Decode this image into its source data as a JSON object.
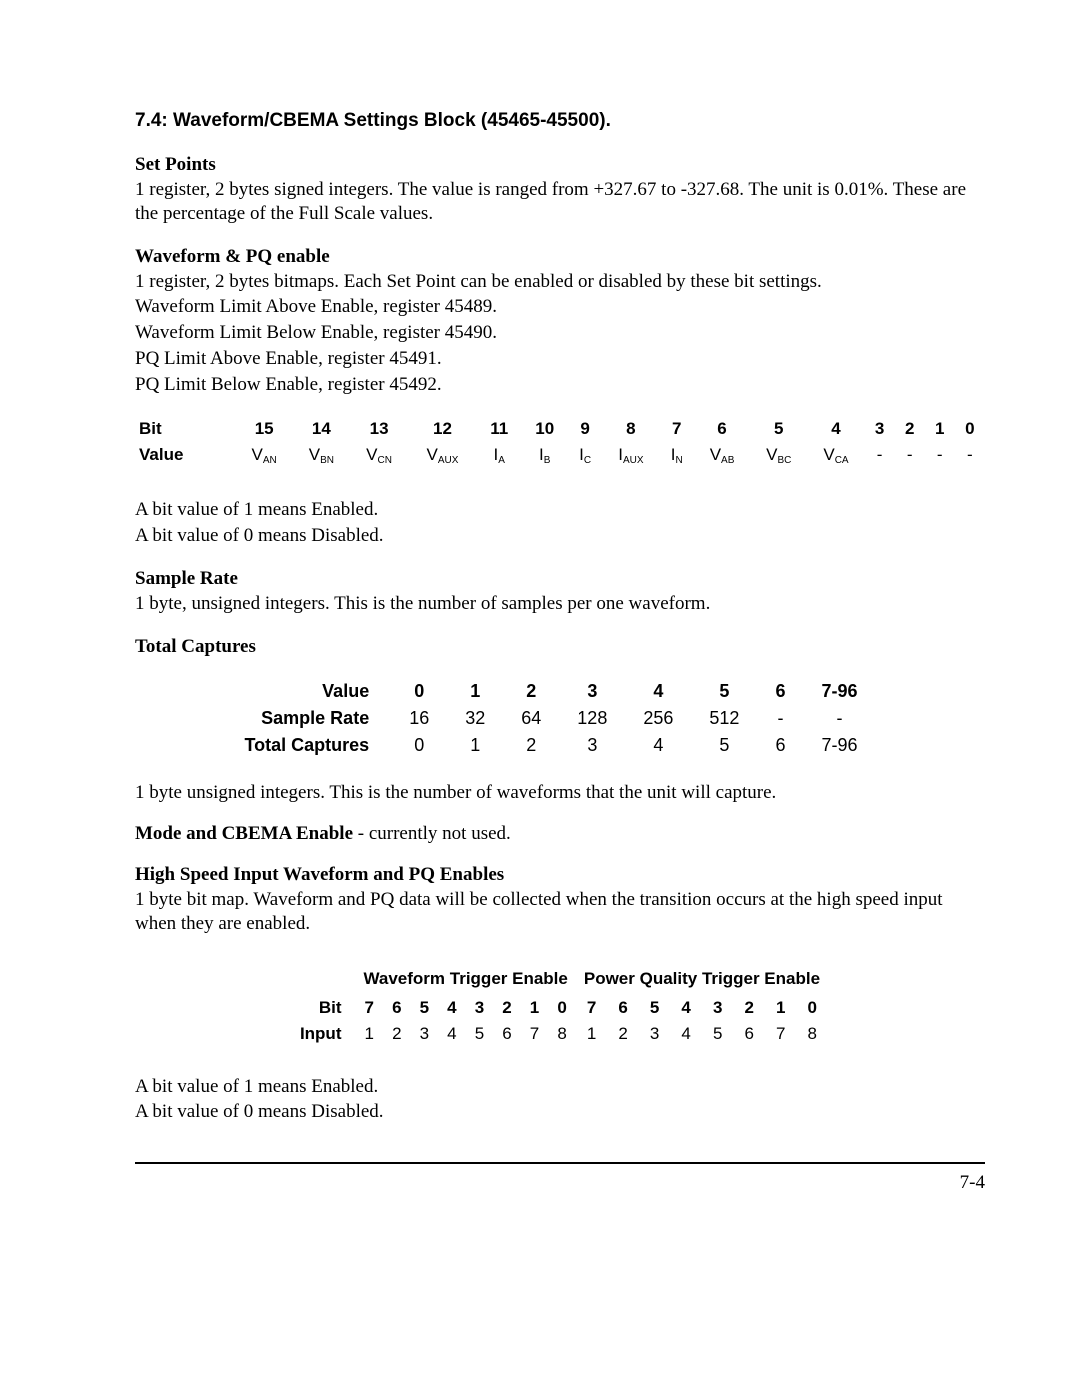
{
  "section": {
    "title": "7.4:  Waveform/CBEMA Settings Block (45465-45500)."
  },
  "setPoints": {
    "heading": "Set Points",
    "text": "1 register, 2 bytes signed integers.  The value is ranged from +327.67 to -327.68.  The unit is 0.01%.  These are the percentage of the Full Scale values."
  },
  "waveformPQ": {
    "heading": "Waveform & PQ enable",
    "lines": [
      "1 register, 2 bytes bitmaps.  Each Set Point can be enabled or disabled by these bit settings.",
      "Waveform Limit Above Enable, register 45489.",
      "Waveform Limit Below Enable, register 45490.",
      "PQ Limit Above Enable, register 45491.",
      "PQ Limit Below Enable, register 45492."
    ]
  },
  "bitTable": {
    "rowLabels": {
      "bit": "Bit",
      "value": "Value"
    },
    "bits": [
      "15",
      "14",
      "13",
      "12",
      "11",
      "10",
      "9",
      "8",
      "7",
      "6",
      "5",
      "4",
      "3",
      "2",
      "1",
      "0"
    ],
    "values": [
      {
        "base": "V",
        "sub": "AN"
      },
      {
        "base": "V",
        "sub": "BN"
      },
      {
        "base": "V",
        "sub": "CN"
      },
      {
        "base": "V",
        "sub": "AUX"
      },
      {
        "base": "I",
        "sub": "A"
      },
      {
        "base": "I",
        "sub": "B"
      },
      {
        "base": "I",
        "sub": "C"
      },
      {
        "base": "I",
        "sub": "AUX"
      },
      {
        "base": "I",
        "sub": "N"
      },
      {
        "base": "V",
        "sub": "AB"
      },
      {
        "base": "V",
        "sub": "BC"
      },
      {
        "base": "V",
        "sub": "CA"
      },
      {
        "plain": "-"
      },
      {
        "plain": "-"
      },
      {
        "plain": "-"
      },
      {
        "plain": "-"
      }
    ]
  },
  "bitMeaning": {
    "enabled": "A bit value of 1 means Enabled.",
    "disabled": "A bit value of 0 means Disabled."
  },
  "sampleRate": {
    "heading": "Sample Rate",
    "text": "1 byte, unsigned integers.  This is the number of samples per one waveform."
  },
  "totalCaptures": {
    "heading": "Total Captures"
  },
  "rateTable": {
    "rowLabels": {
      "value": "Value",
      "sampleRate": "Sample Rate",
      "totalCaptures": "Total Captures"
    },
    "valueRow": [
      "0",
      "1",
      "2",
      "3",
      "4",
      "5",
      "6",
      "7-96"
    ],
    "sampleRateRow": [
      "16",
      "32",
      "64",
      "128",
      "256",
      "512",
      "-",
      "-"
    ],
    "totalCapturesRow": [
      "0",
      "1",
      "2",
      "3",
      "4",
      "5",
      "6",
      "7-96"
    ]
  },
  "totalCapturesNote": "1 byte unsigned integers.  This is the number of waveforms that the unit will capture.",
  "modeCBEMA": {
    "bold": "Mode and CBEMA Enable",
    "rest": " - currently not used."
  },
  "highSpeed": {
    "heading": "High Speed Input Waveform and PQ Enables",
    "text": "1 byte bit map.  Waveform and PQ data will be collected when the transition occurs at the high speed input when they are enabled."
  },
  "trigTable": {
    "group1": "Waveform Trigger Enable",
    "group2": "Power Quality Trigger Enable",
    "rowLabels": {
      "bit": "Bit",
      "input": "Input"
    },
    "bits": [
      "7",
      "6",
      "5",
      "4",
      "3",
      "2",
      "1",
      "0",
      "7",
      "6",
      "5",
      "4",
      "3",
      "2",
      "1",
      "0"
    ],
    "inputs": [
      "1",
      "2",
      "3",
      "4",
      "5",
      "6",
      "7",
      "8",
      "1",
      "2",
      "3",
      "4",
      "5",
      "6",
      "7",
      "8"
    ]
  },
  "pageNumber": "7-4"
}
